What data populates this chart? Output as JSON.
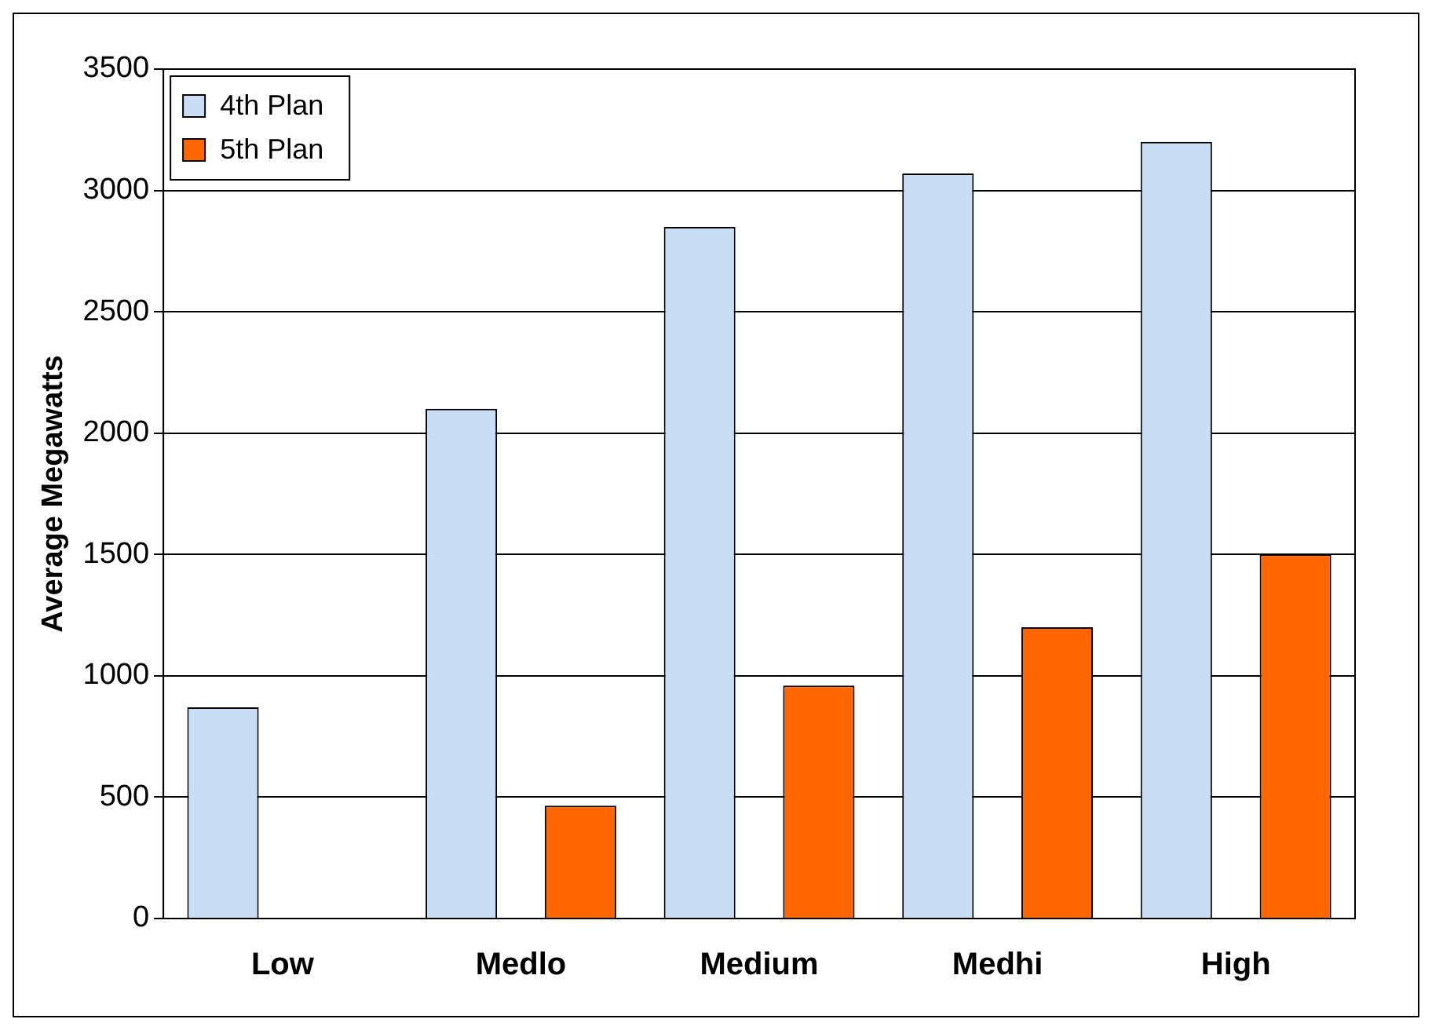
{
  "chart_data": {
    "type": "bar",
    "ylabel": "Average Megawatts",
    "categories": [
      "Low",
      "Medlo",
      "Medium",
      "Medhi",
      "High"
    ],
    "series": [
      {
        "name": "4th Plan",
        "color": "#c9ddf5",
        "values": [
          870,
          2100,
          2850,
          3070,
          3200
        ]
      },
      {
        "name": "5th Plan",
        "color": "#ff6600",
        "values": [
          null,
          465,
          960,
          1200,
          1500
        ]
      }
    ],
    "ylim": [
      0,
      3500
    ],
    "yticks": [
      0,
      500,
      1000,
      1500,
      2000,
      2500,
      3000,
      3500
    ],
    "grid": "y",
    "legend": "top left"
  }
}
